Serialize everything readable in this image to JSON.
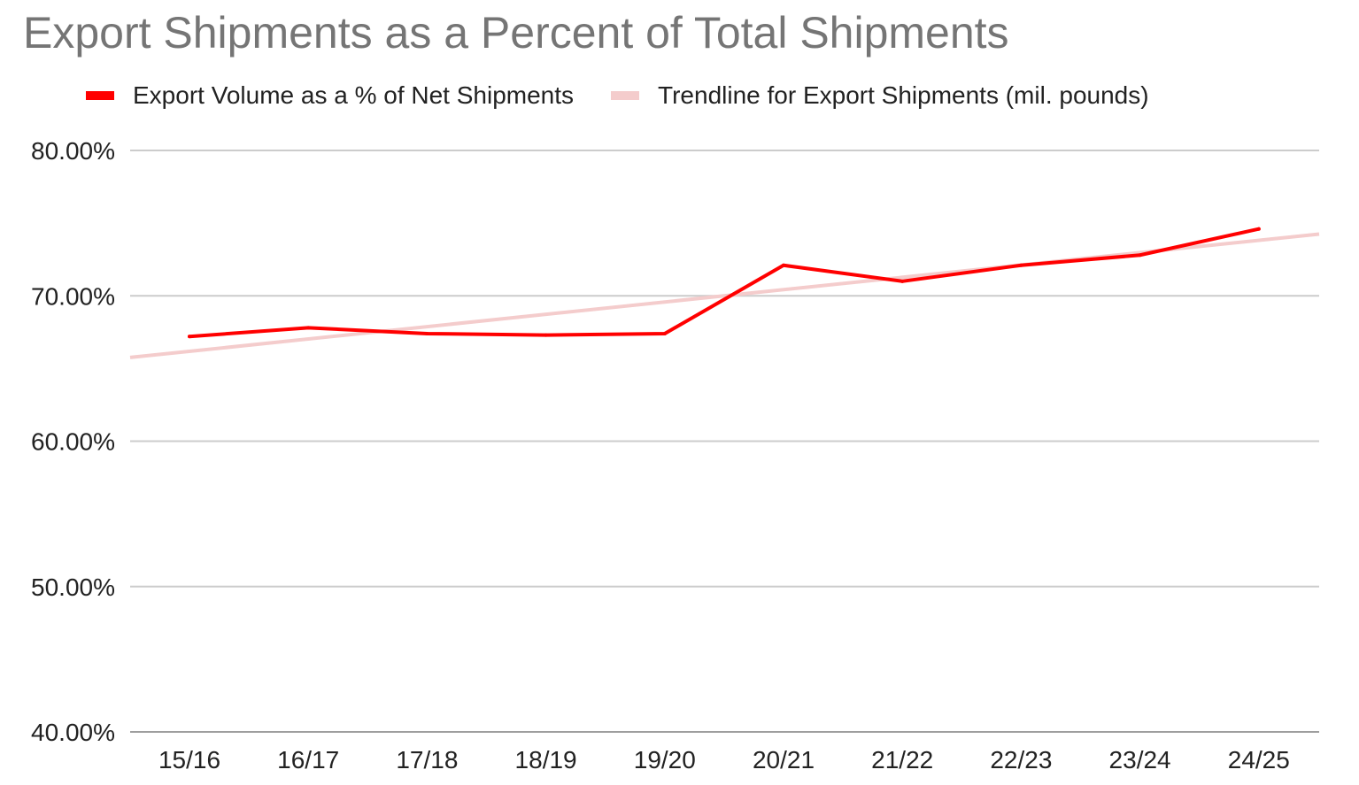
{
  "chart_data": {
    "type": "line",
    "title": "Export Shipments as a Percent of Total Shipments",
    "categories": [
      "15/16",
      "16/17",
      "17/18",
      "18/19",
      "19/20",
      "20/21",
      "21/22",
      "22/23",
      "23/24",
      "24/25"
    ],
    "series": [
      {
        "name": "Export Volume as a % of Net Shipments",
        "color": "#ff0000",
        "values": [
          67.2,
          67.8,
          67.4,
          67.3,
          67.4,
          72.1,
          71.0,
          72.1,
          72.8,
          74.6
        ]
      },
      {
        "name": "Trendline for Export Shipments (mil. pounds)",
        "color": "#f4cccc",
        "trendline": true,
        "values": [
          66.2,
          67.0,
          67.9,
          68.7,
          69.6,
          70.4,
          71.3,
          72.1,
          73.0,
          73.8
        ]
      }
    ],
    "y_ticks": [
      "40.00%",
      "50.00%",
      "60.00%",
      "70.00%",
      "80.00%"
    ],
    "ylim": [
      40,
      80
    ],
    "grid": true,
    "legend": "top-left"
  }
}
